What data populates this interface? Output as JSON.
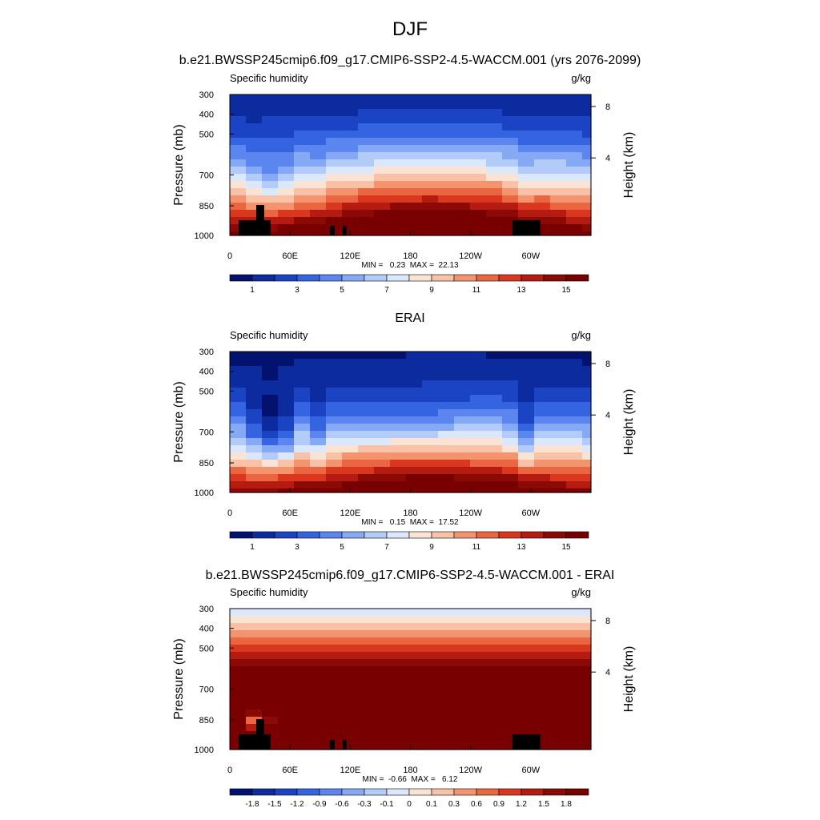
{
  "figure": {
    "title": "DJF"
  },
  "chart_data": [
    {
      "type": "heatmap",
      "title": "b.e21.BWSSP245cmip6.f09_g17.CMIP6-SSP2-4.5-WACCM.001 (yrs 2076-2099)",
      "left_label": "Specific humidity",
      "right_label": "g/kg",
      "ylabel": "Pressure (mb)",
      "y2label": "Height (km)",
      "xticks": [
        "0",
        "60E",
        "120E",
        "180",
        "120W",
        "60W"
      ],
      "yticks": [
        "300",
        "400",
        "500",
        "700",
        "850",
        "1000"
      ],
      "y2ticks": [
        "8",
        "4"
      ],
      "ylim": [
        1000,
        300
      ],
      "stats": "MIN =   0.23  MAX =  22.13",
      "colorbar": {
        "levels": [
          1,
          2,
          3,
          4,
          5,
          6,
          7,
          8,
          9,
          10,
          11,
          12,
          13,
          14,
          15
        ],
        "labels": [
          "1",
          "3",
          "5",
          "7",
          "9",
          "11",
          "13",
          "15"
        ],
        "colors": [
          "#03116f",
          "#0b2b9e",
          "#1a44c4",
          "#3564e0",
          "#5b86ef",
          "#86a9f5",
          "#b2cbf8",
          "#dbe8fb",
          "#fbe3d4",
          "#f9c1a6",
          "#f3946f",
          "#ea6640",
          "#d9381f",
          "#b51b10",
          "#8c0a05",
          "#780000"
        ]
      },
      "field": "qmodel",
      "terrain": true
    },
    {
      "type": "heatmap",
      "title": "ERAI",
      "left_label": "Specific humidity",
      "right_label": "g/kg",
      "ylabel": "Pressure (mb)",
      "y2label": "Height (km)",
      "xticks": [
        "0",
        "60E",
        "120E",
        "180",
        "120W",
        "60W"
      ],
      "yticks": [
        "300",
        "400",
        "500",
        "700",
        "850",
        "1000"
      ],
      "y2ticks": [
        "8",
        "4"
      ],
      "ylim": [
        1000,
        300
      ],
      "stats": "MIN =   0.15  MAX =  17.52",
      "colorbar": {
        "levels": [
          1,
          2,
          3,
          4,
          5,
          6,
          7,
          8,
          9,
          10,
          11,
          12,
          13,
          14,
          15
        ],
        "labels": [
          "1",
          "3",
          "5",
          "7",
          "9",
          "11",
          "13",
          "15"
        ],
        "colors": [
          "#03116f",
          "#0b2b9e",
          "#1a44c4",
          "#3564e0",
          "#5b86ef",
          "#86a9f5",
          "#b2cbf8",
          "#dbe8fb",
          "#fbe3d4",
          "#f9c1a6",
          "#f3946f",
          "#ea6640",
          "#d9381f",
          "#b51b10",
          "#8c0a05",
          "#780000"
        ]
      },
      "field": "qobs",
      "terrain": false
    },
    {
      "type": "heatmap",
      "title": "b.e21.BWSSP245cmip6.f09_g17.CMIP6-SSP2-4.5-WACCM.001 - ERAI",
      "left_label": "Specific humidity",
      "right_label": "g/kg",
      "ylabel": "Pressure (mb)",
      "y2label": "Height (km)",
      "xticks": [
        "0",
        "60E",
        "120E",
        "180",
        "120W",
        "60W"
      ],
      "yticks": [
        "300",
        "400",
        "500",
        "700",
        "850",
        "1000"
      ],
      "y2ticks": [
        "8",
        "4"
      ],
      "ylim": [
        1000,
        300
      ],
      "stats": "MIN =  -0.66  MAX =   6.12",
      "colorbar": {
        "levels": [
          -1.8,
          -1.5,
          -1.2,
          -0.9,
          -0.6,
          -0.3,
          -0.1,
          0,
          0.1,
          0.3,
          0.6,
          0.9,
          1.2,
          1.5,
          1.8
        ],
        "labels": [
          "-1.8",
          "-1.5",
          "-1.2",
          "-0.9",
          "-0.6",
          "-0.3",
          "-0.1",
          "0",
          "0.1",
          "0.3",
          "0.6",
          "0.9",
          "1.2",
          "1.5",
          "1.8"
        ],
        "colors": [
          "#03116f",
          "#0b2b9e",
          "#1a44c4",
          "#3564e0",
          "#5b86ef",
          "#86a9f5",
          "#b2cbf8",
          "#dbe8fb",
          "#fbe3d4",
          "#f9c1a6",
          "#f3946f",
          "#ea6640",
          "#d9381f",
          "#b51b10",
          "#8c0a05",
          "#780000"
        ]
      },
      "field": "diff",
      "terrain": true
    }
  ]
}
